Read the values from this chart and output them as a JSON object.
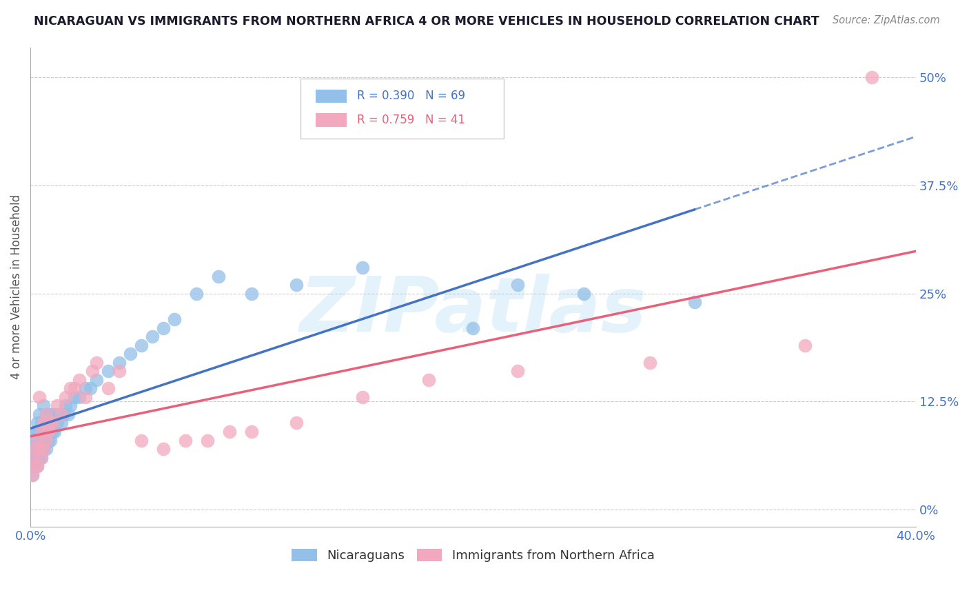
{
  "title": "NICARAGUAN VS IMMIGRANTS FROM NORTHERN AFRICA 4 OR MORE VEHICLES IN HOUSEHOLD CORRELATION CHART",
  "source": "Source: ZipAtlas.com",
  "ylabel": "4 or more Vehicles in Household",
  "xlim": [
    0.0,
    0.4
  ],
  "ylim": [
    -0.02,
    0.535
  ],
  "yticks": [
    0.0,
    0.125,
    0.25,
    0.375,
    0.5
  ],
  "ytick_labels": [
    "0%",
    "12.5%",
    "25%",
    "37.5%",
    "50%"
  ],
  "xtick_labels": [
    "0.0%",
    "40.0%"
  ],
  "xticks": [
    0.0,
    0.4
  ],
  "blue_label": "Nicaraguans",
  "pink_label": "Immigrants from Northern Africa",
  "blue_R": "R = 0.390",
  "blue_N": "N = 69",
  "pink_R": "R = 0.759",
  "pink_N": "N = 41",
  "blue_color": "#92C0E8",
  "pink_color": "#F2A8BE",
  "blue_line_color": "#4472C4",
  "pink_line_color": "#E8607A",
  "watermark": "ZIPatlas",
  "blue_scatter_x": [
    0.001,
    0.001,
    0.001,
    0.001,
    0.001,
    0.002,
    0.002,
    0.002,
    0.002,
    0.002,
    0.003,
    0.003,
    0.003,
    0.003,
    0.003,
    0.003,
    0.004,
    0.004,
    0.004,
    0.004,
    0.004,
    0.005,
    0.005,
    0.005,
    0.005,
    0.006,
    0.006,
    0.006,
    0.006,
    0.007,
    0.007,
    0.007,
    0.008,
    0.008,
    0.008,
    0.009,
    0.009,
    0.01,
    0.01,
    0.011,
    0.011,
    0.012,
    0.013,
    0.014,
    0.015,
    0.016,
    0.017,
    0.018,
    0.02,
    0.022,
    0.025,
    0.027,
    0.03,
    0.035,
    0.04,
    0.045,
    0.05,
    0.055,
    0.06,
    0.065,
    0.075,
    0.085,
    0.1,
    0.12,
    0.15,
    0.2,
    0.22,
    0.25,
    0.3
  ],
  "blue_scatter_y": [
    0.05,
    0.06,
    0.07,
    0.08,
    0.04,
    0.06,
    0.07,
    0.08,
    0.09,
    0.05,
    0.05,
    0.06,
    0.07,
    0.08,
    0.09,
    0.1,
    0.06,
    0.07,
    0.08,
    0.09,
    0.11,
    0.06,
    0.07,
    0.09,
    0.1,
    0.07,
    0.08,
    0.1,
    0.12,
    0.07,
    0.09,
    0.11,
    0.08,
    0.09,
    0.11,
    0.08,
    0.1,
    0.09,
    0.11,
    0.09,
    0.11,
    0.1,
    0.11,
    0.1,
    0.11,
    0.12,
    0.11,
    0.12,
    0.13,
    0.13,
    0.14,
    0.14,
    0.15,
    0.16,
    0.17,
    0.18,
    0.19,
    0.2,
    0.21,
    0.22,
    0.25,
    0.27,
    0.25,
    0.26,
    0.28,
    0.21,
    0.26,
    0.25,
    0.24
  ],
  "pink_scatter_x": [
    0.001,
    0.001,
    0.002,
    0.002,
    0.003,
    0.003,
    0.004,
    0.004,
    0.005,
    0.005,
    0.006,
    0.006,
    0.007,
    0.007,
    0.008,
    0.009,
    0.01,
    0.012,
    0.014,
    0.016,
    0.018,
    0.02,
    0.022,
    0.025,
    0.028,
    0.03,
    0.035,
    0.04,
    0.05,
    0.06,
    0.07,
    0.08,
    0.09,
    0.1,
    0.12,
    0.15,
    0.18,
    0.22,
    0.28,
    0.35,
    0.38
  ],
  "pink_scatter_y": [
    0.04,
    0.06,
    0.05,
    0.07,
    0.05,
    0.08,
    0.07,
    0.13,
    0.06,
    0.09,
    0.07,
    0.1,
    0.08,
    0.11,
    0.09,
    0.1,
    0.1,
    0.12,
    0.11,
    0.13,
    0.14,
    0.14,
    0.15,
    0.13,
    0.16,
    0.17,
    0.14,
    0.16,
    0.08,
    0.07,
    0.08,
    0.08,
    0.09,
    0.09,
    0.1,
    0.13,
    0.15,
    0.16,
    0.17,
    0.19,
    0.5
  ],
  "background_color": "#FFFFFF",
  "grid_color": "#CCCCCC"
}
